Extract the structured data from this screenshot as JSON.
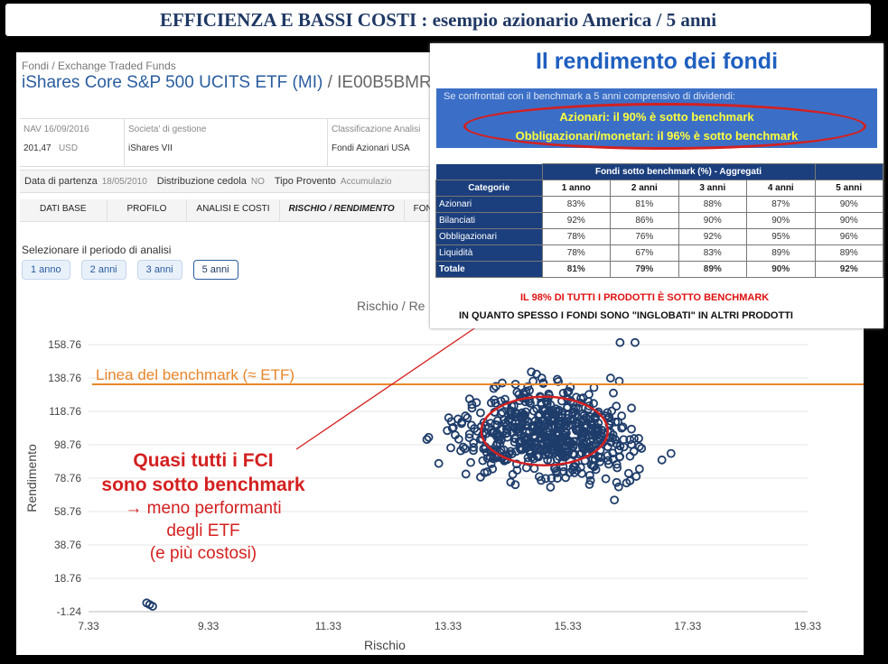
{
  "slide_title": "EFFICIENZA E BASSI COSTI : esempio azionario America / 5 anni",
  "fund": {
    "breadcrumb": "Fondi / Exchange Traded Funds",
    "name": "iShares Core S&P 500 UCITS ETF (MI)",
    "isin_partial": "IE00B5BMR",
    "nav_label": "NAV 16/09/2016",
    "nav_value": "201,47",
    "nav_currency": "USD",
    "company_label": "Societa' di gestione",
    "company_value": "iShares VII",
    "class_label": "Classificazione Analisi",
    "class_value": "Fondi Azionari USA",
    "start_label": "Data di partenza",
    "start_value": "18/05/2010",
    "dist_label": "Distribuzione cedola",
    "dist_value": "NO",
    "type_label": "Tipo Provento",
    "type_value": "Accumulazio"
  },
  "tabs": [
    "DATI BASE",
    "PROFILO",
    "ANALISI E COSTI",
    "RISCHIO / RENDIMENTO",
    "FONDI SOCI"
  ],
  "active_tab": "RISCHIO / RENDIMENTO",
  "period": {
    "label": "Selezionare il periodo di analisi",
    "options": [
      "1 anno",
      "2 anni",
      "3 anni",
      "5 anni"
    ],
    "selected": "5 anni"
  },
  "chart_title": "Rischio / Re",
  "chart_data": {
    "type": "scatter",
    "xlabel": "Rischio",
    "ylabel": "Rendimento",
    "xlim": [
      7.33,
      19.33
    ],
    "ylim": [
      -1.24,
      158.76
    ],
    "xticks": [
      "7.33",
      "9.33",
      "11.33",
      "13.33",
      "15.33",
      "17.33",
      "19.33"
    ],
    "yticks": [
      "-1.24",
      "18.76",
      "38.76",
      "58.76",
      "78.76",
      "98.76",
      "118.76",
      "138.76",
      "158.76"
    ],
    "benchmark_line": {
      "label": "Linea del benchmark (≈ ETF)",
      "y": 135
    },
    "annotated_points": [
      {
        "x": 8.3,
        "y": 4
      },
      {
        "x": 8.35,
        "y": 3
      },
      {
        "x": 8.4,
        "y": 2
      },
      {
        "x": 16.2,
        "y": 160
      },
      {
        "x": 16.45,
        "y": 160
      }
    ],
    "description_points": {
      "cluster_center": {
        "x": 15.0,
        "y": 106
      },
      "spread_x": [
        11.6,
        18.6
      ],
      "spread_y": [
        24,
        158
      ]
    },
    "point_color": "#1f3d6b"
  },
  "annotation": {
    "line1": "Quasi tutti i FCI",
    "line2": "sono sotto benchmark",
    "line3": "→ meno performanti",
    "line4": "degli ETF",
    "line5": "(e più costosi)"
  },
  "callout": {
    "title": "Il rendimento dei fondi",
    "intro": "Se confrontati con il benchmark a 5 anni comprensivo di dividendi:",
    "highlight1": "Azionari: il 90% è sotto benchmark",
    "highlight2": "Obbligazionari/monetari: il 96% è sotto benchmark",
    "table_header": "Fondi sotto benchmark (%) - Aggregati",
    "columns": [
      "Categorie",
      "1 anno",
      "2 anni",
      "3 anni",
      "4 anni",
      "5 anni"
    ],
    "rows": [
      [
        "Azionari",
        "83%",
        "81%",
        "88%",
        "87%",
        "90%"
      ],
      [
        "Bilanciati",
        "92%",
        "86%",
        "90%",
        "90%",
        "90%"
      ],
      [
        "Obbligazionari",
        "78%",
        "76%",
        "92%",
        "95%",
        "96%"
      ],
      [
        "Liquidità",
        "78%",
        "67%",
        "83%",
        "89%",
        "89%"
      ],
      [
        "Totale",
        "81%",
        "79%",
        "89%",
        "90%",
        "92%"
      ]
    ],
    "warning1": "IL 98% DI TUTTI I PRODOTTI È SOTTO BENCHMARK",
    "warning2": "IN QUANTO SPESSO I FONDI SONO \"INGLOBATI\" IN ALTRI PRODOTTI"
  },
  "colors": {
    "title": "#1f3864",
    "accent_blue": "#2a5d9f",
    "benchmark": "#e8862a",
    "highlight_red": "#d42020",
    "callout_yellow": "#ffff3c"
  }
}
